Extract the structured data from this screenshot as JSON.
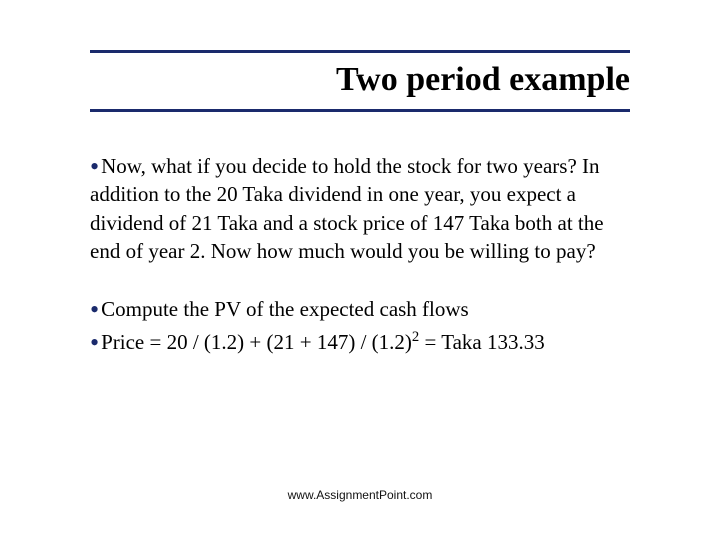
{
  "title": "Two period example",
  "bullets": {
    "b1": "Now, what if you decide to hold the stock for two years? In addition to the 20 Taka dividend in one year, you expect a dividend of 21 Taka and a stock price of 147 Taka both at the end of year 2. Now how much would you be willing to pay?",
    "b2": "Compute the PV of the expected cash flows",
    "b3_prefix": "Price = 20 / (1.2) + (21 + 147) / (1.2)",
    "b3_exp": "2",
    "b3_suffix": " = Taka 133.33"
  },
  "footer": "www.AssignmentPoint.com",
  "colors": {
    "rule": "#1a2a6c",
    "bullet_dot": "#1a2a6c",
    "text": "#000000",
    "background": "#ffffff"
  },
  "typography": {
    "title_fontsize": 34,
    "body_fontsize": 21,
    "footer_fontsize": 12,
    "title_font": "Georgia serif",
    "footer_font": "Arial sans-serif"
  }
}
